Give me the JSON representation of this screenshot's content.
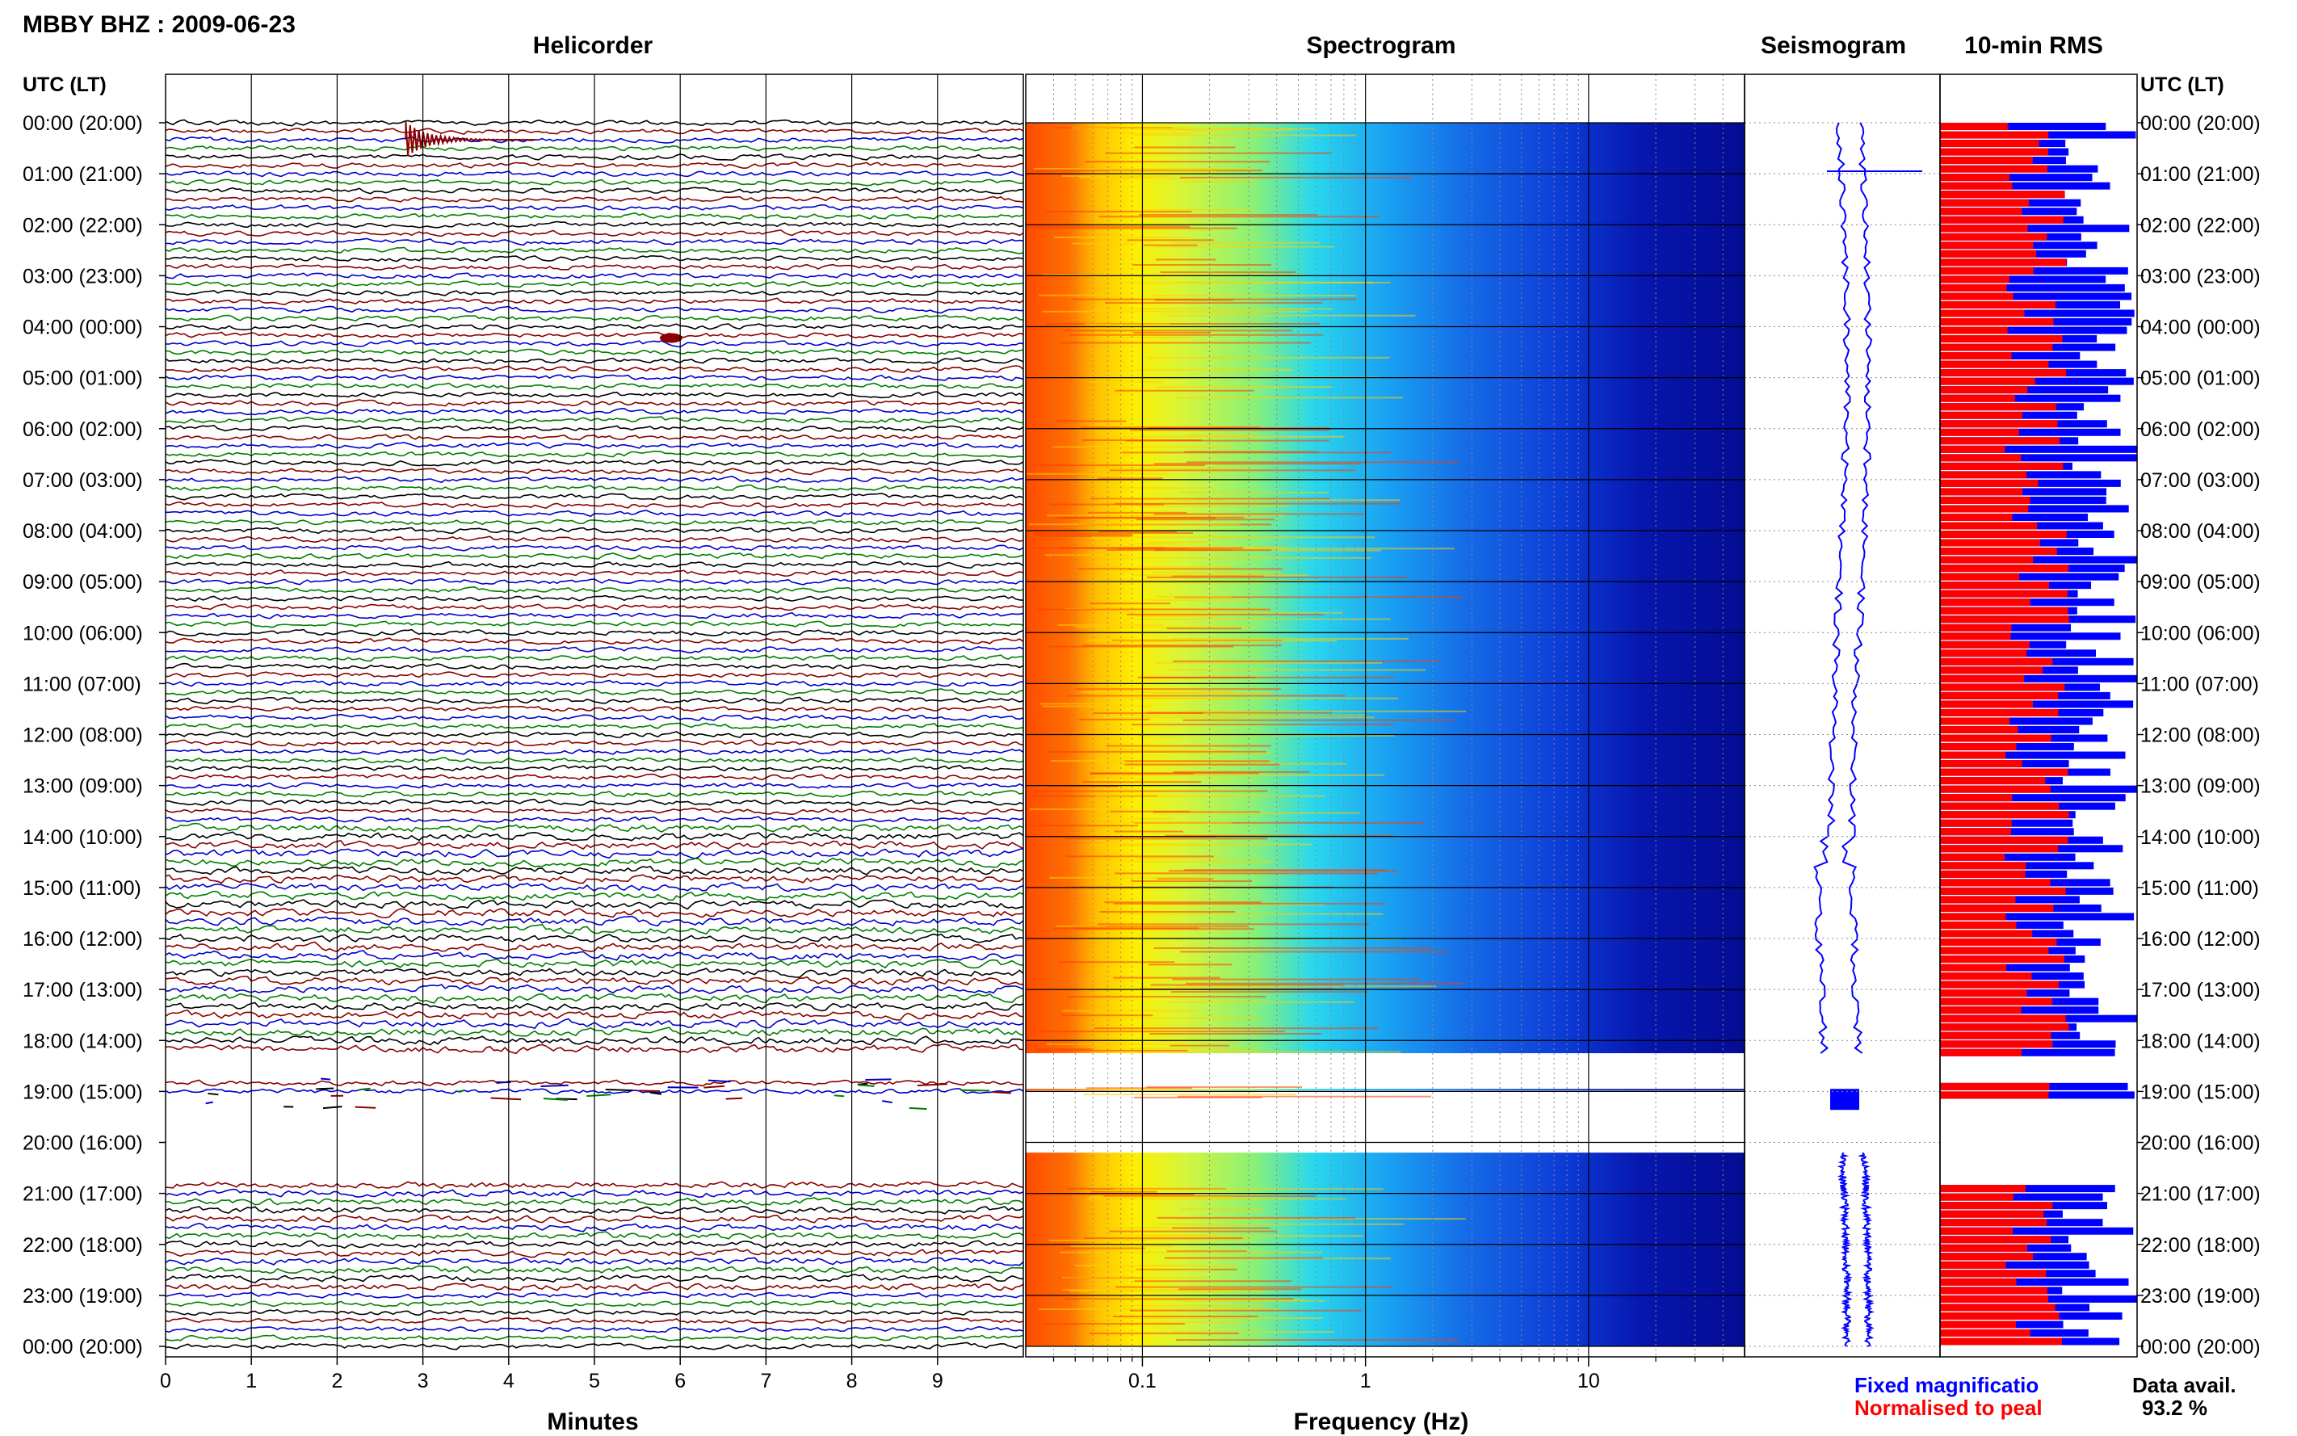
{
  "header": {
    "station_title": "MBBY BHZ : 2009-06-23"
  },
  "panels": {
    "helicorder": "Helicorder",
    "spectrogram": "Spectrogram",
    "seismogram": "Seismogram",
    "rms": "10-min RMS"
  },
  "axes": {
    "left_header": "UTC (LT)",
    "right_header": "UTC (LT)",
    "x_helicorder_label": "Minutes",
    "x_spectrogram_label": "Frequency (Hz)"
  },
  "legend": {
    "fixed": "Fixed magnificatio",
    "normalised": "Normalised to peal",
    "data_avail_label": "Data avail.",
    "data_avail_value": "93.2 %"
  },
  "colors": {
    "helicorder_traces": [
      "#000000",
      "#8b0000",
      "#0000cd",
      "#008000"
    ],
    "rms_normalised": "#ff0000",
    "rms_fixed": "#0000ff",
    "seismogram": "#0000ff"
  },
  "chart_data": [
    {
      "type": "line",
      "name": "helicorder",
      "title": "Helicorder",
      "xlabel": "Minutes",
      "x_ticks": [
        0,
        1,
        2,
        3,
        4,
        5,
        6,
        7,
        8,
        9
      ],
      "xlim": [
        0,
        10
      ],
      "y_tick_labels": [
        "00:00 (20:00)",
        "01:00 (21:00)",
        "02:00 (22:00)",
        "03:00 (23:00)",
        "04:00 (00:00)",
        "05:00 (01:00)",
        "06:00 (02:00)",
        "07:00 (03:00)",
        "08:00 (04:00)",
        "09:00 (05:00)",
        "10:00 (06:00)",
        "11:00 (07:00)",
        "12:00 (08:00)",
        "13:00 (09:00)",
        "14:00 (10:00)",
        "15:00 (11:00)",
        "16:00 (12:00)",
        "17:00 (13:00)",
        "18:00 (14:00)",
        "19:00 (15:00)",
        "20:00 (16:00)",
        "21:00 (17:00)",
        "22:00 (18:00)",
        "23:00 (19:00)",
        "00:00 (20:00)"
      ],
      "lines_per_hour": 6,
      "data_gaps_utc": [
        [
          "18:15",
          "18:45"
        ],
        [
          "19:10",
          "20:50"
        ]
      ],
      "events": [
        {
          "time_utc": "00:20",
          "minute": 2.8,
          "kind": "large event"
        },
        {
          "time_utc": "04:00",
          "minute": 5.8,
          "kind": "small event"
        }
      ]
    },
    {
      "type": "heatmap",
      "name": "spectrogram",
      "title": "Spectrogram",
      "xlabel": "Frequency (Hz)",
      "x_scale": "log",
      "xlim": [
        0.03,
        50
      ],
      "x_ticks": [
        0.1,
        1,
        10
      ],
      "colormap": "jet"
    },
    {
      "type": "line",
      "name": "seismogram",
      "title": "Seismogram"
    },
    {
      "type": "bar",
      "name": "10-min RMS",
      "title": "10-min RMS",
      "orientation": "horizontal",
      "series": [
        {
          "name": "Fixed magnificatio",
          "color": "#0000ff"
        },
        {
          "name": "Normalised to peal",
          "color": "#ff0000"
        }
      ],
      "data_availability_percent": 93.2
    }
  ]
}
